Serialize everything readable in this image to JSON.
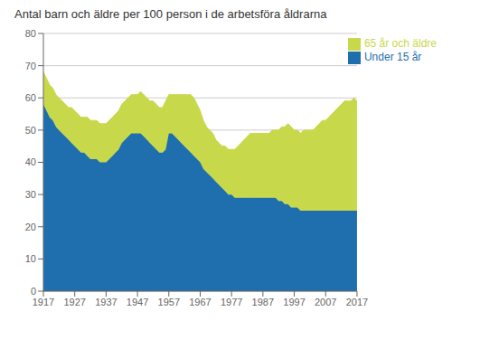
{
  "chart_data": {
    "type": "area",
    "stacked": true,
    "title": "Antal barn och äldre per 100 person i de arbetsföra åldrarna",
    "x": [
      1917,
      1918,
      1919,
      1920,
      1921,
      1922,
      1923,
      1924,
      1925,
      1926,
      1927,
      1928,
      1929,
      1930,
      1931,
      1932,
      1933,
      1934,
      1935,
      1936,
      1937,
      1938,
      1939,
      1940,
      1941,
      1942,
      1943,
      1944,
      1945,
      1946,
      1947,
      1948,
      1949,
      1950,
      1951,
      1952,
      1953,
      1954,
      1955,
      1956,
      1957,
      1958,
      1959,
      1960,
      1961,
      1962,
      1963,
      1964,
      1965,
      1966,
      1967,
      1968,
      1969,
      1970,
      1971,
      1972,
      1973,
      1974,
      1975,
      1976,
      1977,
      1978,
      1979,
      1980,
      1981,
      1982,
      1983,
      1984,
      1985,
      1986,
      1987,
      1988,
      1989,
      1990,
      1991,
      1992,
      1993,
      1994,
      1995,
      1996,
      1997,
      1998,
      1999,
      2000,
      2001,
      2002,
      2003,
      2004,
      2005,
      2006,
      2007,
      2008,
      2009,
      2010,
      2011,
      2012,
      2013,
      2014,
      2015,
      2016,
      2017
    ],
    "series": [
      {
        "name": "Under 15 år",
        "color": "#1F6FAE",
        "values": [
          58,
          56,
          54,
          53,
          51,
          50,
          49,
          48,
          47,
          46,
          45,
          44,
          43,
          43,
          42,
          41,
          41,
          41,
          40,
          40,
          40,
          41,
          42,
          43,
          44,
          46,
          47,
          48,
          49,
          49,
          49,
          49,
          48,
          47,
          46,
          45,
          44,
          43,
          43,
          44,
          49,
          49,
          48,
          47,
          46,
          45,
          44,
          43,
          42,
          41,
          40,
          38,
          37,
          36,
          35,
          34,
          33,
          32,
          31,
          30,
          30,
          29,
          29,
          29,
          29,
          29,
          29,
          29,
          29,
          29,
          29,
          29,
          29,
          29,
          29,
          28,
          28,
          27,
          27,
          26,
          26,
          26,
          25,
          25,
          25,
          25,
          25,
          25,
          25,
          25,
          25,
          25,
          25,
          25,
          25,
          25,
          25,
          25,
          25,
          25,
          25
        ]
      },
      {
        "name": "65 år och äldre",
        "color": "#C8D84B",
        "values": [
          10,
          10,
          10,
          10,
          10,
          10,
          10,
          10,
          10,
          11,
          11,
          11,
          11,
          11,
          12,
          12,
          12,
          12,
          12,
          12,
          12,
          12,
          12,
          12,
          12,
          12,
          12,
          12,
          12,
          12,
          12,
          13,
          13,
          13,
          13,
          14,
          14,
          14,
          14,
          15,
          12,
          12,
          13,
          14,
          15,
          16,
          17,
          18,
          18,
          17,
          16,
          15,
          14,
          14,
          14,
          13,
          13,
          13,
          14,
          14,
          14,
          15,
          16,
          17,
          18,
          19,
          20,
          20,
          20,
          20,
          20,
          20,
          20,
          21,
          21,
          22,
          23,
          24,
          25,
          25,
          24,
          24,
          24,
          25,
          25,
          25,
          25,
          26,
          27,
          28,
          28,
          29,
          30,
          31,
          32,
          33,
          34,
          34,
          34,
          35,
          34
        ]
      }
    ],
    "xlim": [
      1917,
      2017
    ],
    "ylim": [
      0,
      80
    ],
    "xticks": [
      1917,
      1927,
      1937,
      1947,
      1957,
      1967,
      1977,
      1987,
      1997,
      2007,
      2017
    ],
    "yticks": [
      0,
      10,
      20,
      30,
      40,
      50,
      60,
      70,
      80
    ],
    "grid": "y",
    "legend": "upper right"
  }
}
